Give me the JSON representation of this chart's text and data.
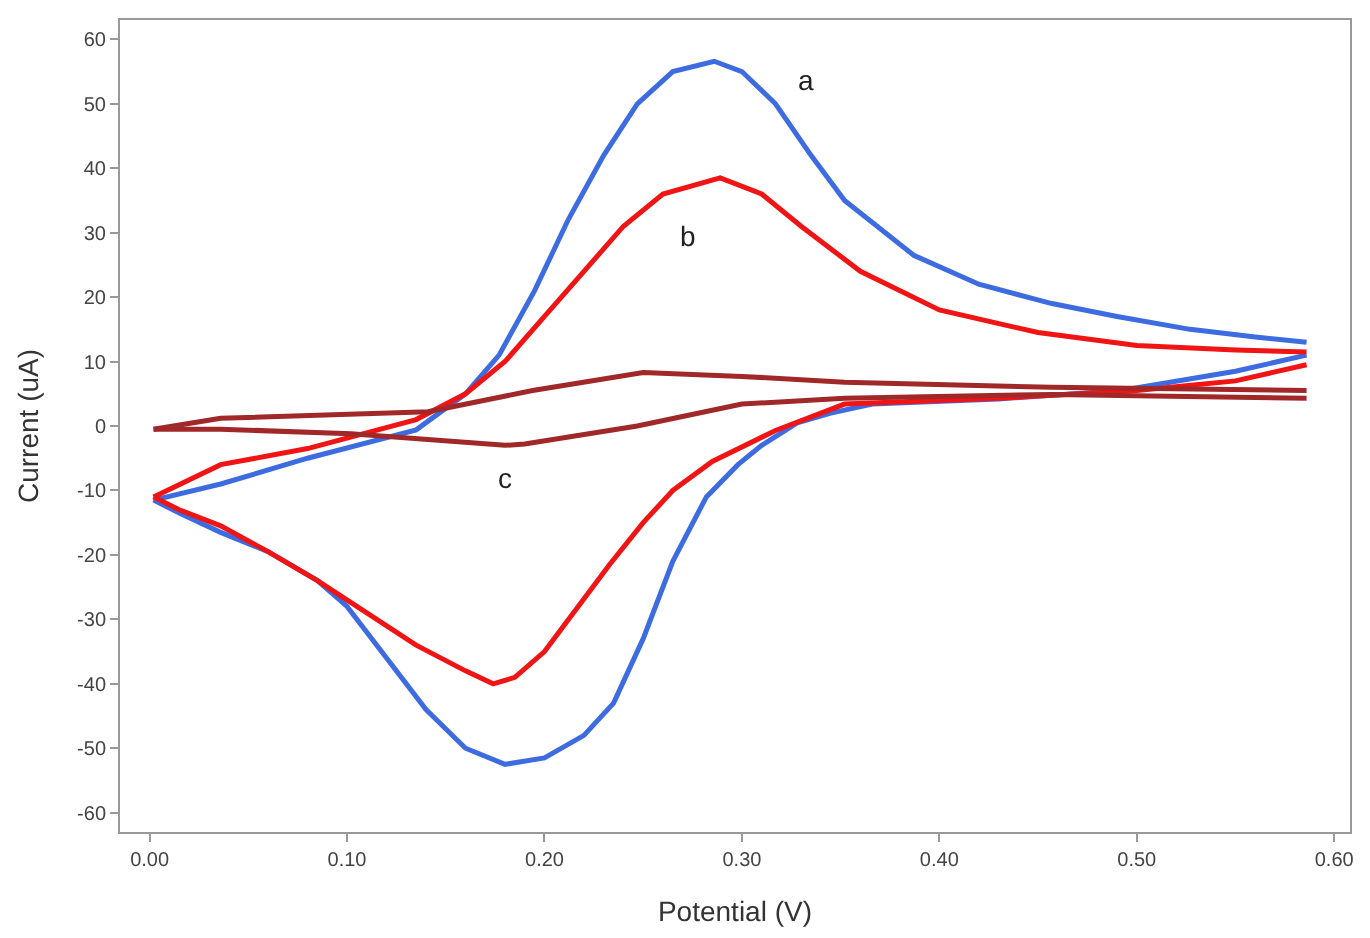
{
  "chart_data": {
    "type": "line",
    "xlabel": "Potential (V)",
    "ylabel": "Current (uA)",
    "xlim": [
      -0.015,
      0.608
    ],
    "xticks": [
      {
        "value": 0,
        "label": "0.00"
      },
      {
        "value": 0.1,
        "label": "0.10"
      },
      {
        "value": 0.2,
        "label": "0.20"
      },
      {
        "value": 0.3,
        "label": "0.30"
      },
      {
        "value": 0.4,
        "label": "0.40"
      },
      {
        "value": 0.5,
        "label": "0.50"
      },
      {
        "value": 0.6,
        "label": "0.60"
      }
    ],
    "ylim": [
      -63,
      63
    ],
    "yticks": [
      -60,
      -50,
      -40,
      -30,
      -20,
      -10,
      0,
      10,
      20,
      30,
      40,
      50,
      60
    ],
    "legend": false,
    "marker": "none",
    "line_style": "solid",
    "series": [
      {
        "name": "a",
        "color": "#3d6be0",
        "x": [
          0.002,
          0.036,
          0.08,
          0.135,
          0.16,
          0.177,
          0.195,
          0.212,
          0.23,
          0.247,
          0.265,
          0.286,
          0.3,
          0.317,
          0.335,
          0.352,
          0.387,
          0.42,
          0.457,
          0.49,
          0.527,
          0.56,
          0.586
        ],
        "values": [
          -11.5,
          -9,
          -5,
          -0.6,
          5,
          11,
          21,
          32,
          42,
          50,
          55,
          56.6,
          55,
          50,
          42,
          35,
          26.5,
          22,
          19,
          17,
          15,
          13.8,
          13
        ]
      },
      {
        "color": "#3d6be0",
        "x": [
          0.002,
          0.015,
          0.036,
          0.06,
          0.085,
          0.1,
          0.12,
          0.14,
          0.16,
          0.18,
          0.2,
          0.22,
          0.235,
          0.25,
          0.265,
          0.282,
          0.298,
          0.31,
          0.328,
          0.345,
          0.366,
          0.43,
          0.492,
          0.55,
          0.586
        ],
        "values": [
          -11.5,
          -13.5,
          -16.5,
          -19.5,
          -24,
          -28,
          -36,
          -44,
          -50,
          -52.5,
          -51.5,
          -48,
          -43,
          -33,
          -21,
          -11,
          -6,
          -3,
          0.5,
          2,
          3.4,
          4.2,
          5.5,
          8.5,
          11
        ]
      },
      {
        "name": "b",
        "color": "#f01414",
        "x": [
          0.002,
          0.036,
          0.08,
          0.135,
          0.16,
          0.18,
          0.2,
          0.22,
          0.24,
          0.26,
          0.289,
          0.31,
          0.33,
          0.36,
          0.4,
          0.45,
          0.5,
          0.55,
          0.586
        ],
        "values": [
          -11,
          -6,
          -3.5,
          1,
          5,
          10,
          17,
          24,
          31,
          36,
          38.5,
          36,
          31,
          24,
          18,
          14.5,
          12.5,
          11.8,
          11.5
        ]
      },
      {
        "color": "#f01414",
        "x": [
          0.002,
          0.015,
          0.036,
          0.06,
          0.085,
          0.11,
          0.135,
          0.16,
          0.174,
          0.185,
          0.2,
          0.233,
          0.25,
          0.265,
          0.285,
          0.317,
          0.352,
          0.43,
          0.5,
          0.55,
          0.586
        ],
        "values": [
          -11,
          -13,
          -15.5,
          -19.5,
          -24,
          -29,
          -34,
          -38,
          -40,
          -39,
          -35,
          -21.5,
          -15,
          -10,
          -5.5,
          -0.7,
          3.4,
          4.3,
          5.5,
          7,
          9.5
        ]
      },
      {
        "color": "#a02828",
        "x": [
          0.002,
          0.036,
          0.141,
          0.194,
          0.25,
          0.3,
          0.352,
          0.457,
          0.586
        ],
        "values": [
          -0.5,
          1.2,
          2.2,
          5.5,
          8.3,
          7.7,
          6.8,
          6,
          5.5
        ]
      },
      {
        "name": "c",
        "color": "#a02828",
        "x": [
          0.002,
          0.036,
          0.102,
          0.18,
          0.19,
          0.247,
          0.3,
          0.352,
          0.457,
          0.586
        ],
        "values": [
          -0.5,
          -0.5,
          -1.2,
          -3,
          -2.8,
          0,
          3.4,
          4.3,
          4.9,
          4.3
        ]
      }
    ]
  }
}
